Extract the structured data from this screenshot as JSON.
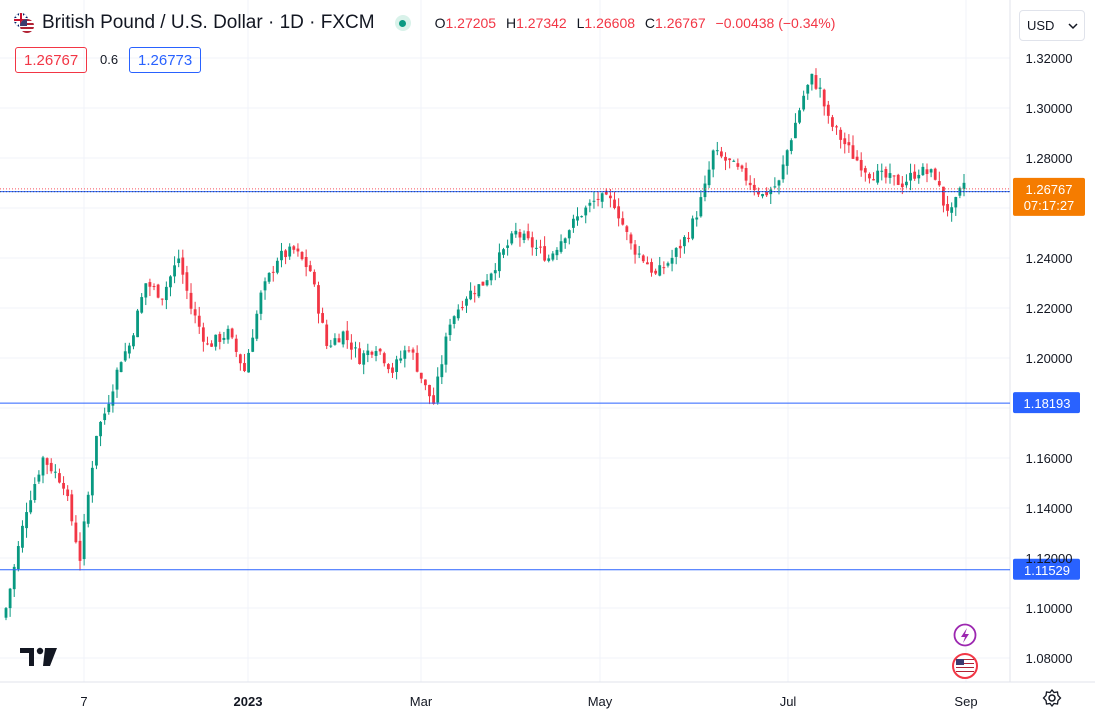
{
  "header": {
    "title": "British Pound / U.S. Dollar · 1D · FXCM",
    "open_label": "O",
    "open": "1.27205",
    "high_label": "H",
    "high": "1.27342",
    "low_label": "L",
    "low": "1.26608",
    "close_label": "C",
    "close": "1.26767",
    "change": "−0.00438 (−0.34%)",
    "bid": "1.26767",
    "spread": "0.6",
    "ask": "1.26773"
  },
  "currency": {
    "label": "USD"
  },
  "colors": {
    "up": "#089981",
    "down": "#f23645",
    "line": "#2962ff",
    "price": "#f7525f",
    "countdown_bg": "#f57c00"
  },
  "chart_data": {
    "type": "candlestick",
    "y_axis_ticks": [
      "1.32000",
      "1.30000",
      "1.28000",
      "1.24000",
      "1.22000",
      "1.20000",
      "1.16000",
      "1.14000",
      "1.12000",
      "1.10000",
      "1.08000"
    ],
    "x_axis_ticks": [
      "7",
      "2023",
      "Mar",
      "May",
      "Jul",
      "Sep"
    ],
    "ylim": [
      1.08,
      1.32
    ],
    "current_price": {
      "value": 1.26767,
      "label": "1.26767",
      "countdown": "07:17:27"
    },
    "horizontal_lines": [
      {
        "value": 1.26657,
        "label": "1.26657"
      },
      {
        "value": 1.18193,
        "label": "1.18193"
      },
      {
        "value": 1.11529,
        "label": "1.11529"
      }
    ],
    "anchors": [
      [
        0,
        1.1
      ],
      [
        5,
        1.14
      ],
      [
        9,
        1.16
      ],
      [
        14,
        1.15
      ],
      [
        18,
        1.12
      ],
      [
        22,
        1.17
      ],
      [
        24,
        1.178
      ],
      [
        28,
        1.2
      ],
      [
        30,
        1.205
      ],
      [
        34,
        1.23
      ],
      [
        38,
        1.225
      ],
      [
        42,
        1.24
      ],
      [
        45,
        1.22
      ],
      [
        49,
        1.205
      ],
      [
        54,
        1.21
      ],
      [
        58,
        1.195
      ],
      [
        62,
        1.225
      ],
      [
        66,
        1.24
      ],
      [
        70,
        1.243
      ],
      [
        74,
        1.235
      ],
      [
        78,
        1.205
      ],
      [
        82,
        1.21
      ],
      [
        86,
        1.2
      ],
      [
        90,
        1.205
      ],
      [
        94,
        1.195
      ],
      [
        98,
        1.205
      ],
      [
        102,
        1.188
      ],
      [
        104,
        1.182
      ],
      [
        108,
        1.215
      ],
      [
        112,
        1.225
      ],
      [
        116,
        1.23
      ],
      [
        120,
        1.24
      ],
      [
        124,
        1.25
      ],
      [
        128,
        1.245
      ],
      [
        132,
        1.24
      ],
      [
        136,
        1.25
      ],
      [
        140,
        1.258
      ],
      [
        144,
        1.264
      ],
      [
        148,
        1.262
      ],
      [
        152,
        1.245
      ],
      [
        156,
        1.238
      ],
      [
        158,
        1.233
      ],
      [
        162,
        1.24
      ],
      [
        166,
        1.25
      ],
      [
        168,
        1.258
      ],
      [
        170,
        1.268
      ],
      [
        172,
        1.282
      ],
      [
        176,
        1.278
      ],
      [
        180,
        1.272
      ],
      [
        184,
        1.265
      ],
      [
        188,
        1.27
      ],
      [
        190,
        1.283
      ],
      [
        194,
        1.305
      ],
      [
        196,
        1.312
      ],
      [
        198,
        1.307
      ],
      [
        200,
        1.295
      ],
      [
        203,
        1.288
      ],
      [
        206,
        1.281
      ],
      [
        210,
        1.274
      ],
      [
        214,
        1.272
      ],
      [
        218,
        1.27
      ],
      [
        222,
        1.275
      ],
      [
        226,
        1.273
      ],
      [
        228,
        1.262
      ],
      [
        230,
        1.258
      ],
      [
        233,
        1.27
      ]
    ]
  }
}
